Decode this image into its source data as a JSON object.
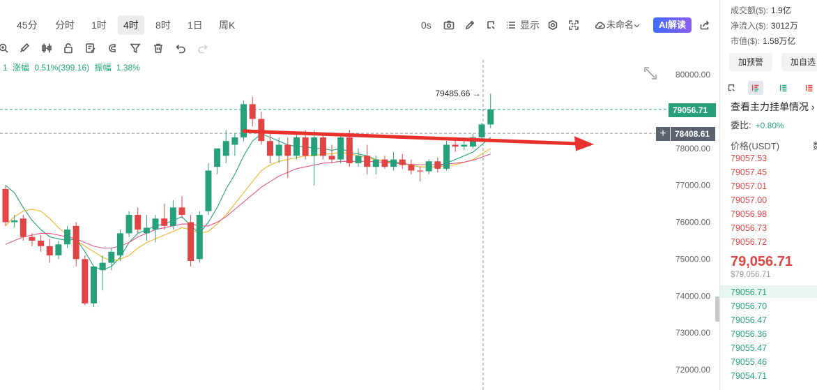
{
  "toolbar": {
    "timeframes": [
      "45分",
      "分时",
      "1时",
      "4时",
      "8时",
      "1日",
      "周K"
    ],
    "active_timeframe": "4时",
    "countdown": "0s",
    "display_label": "显示",
    "layout_name": "未命名",
    "ai_label": "AI解读"
  },
  "info": {
    "prefix": "1",
    "change_label": "涨幅",
    "change_value": "0.51%(399.16)",
    "amplitude_label": "振幅",
    "amplitude_value": "1.38%"
  },
  "chart_data": {
    "type": "candlestick",
    "y_ticks": [
      "80000.00",
      "79000.00",
      "78000.00",
      "77000.00",
      "76000.00",
      "75000.00",
      "74000.00",
      "73000.00",
      "72000.00"
    ],
    "ylim": [
      71850,
      80500
    ],
    "last_price_label": "79056.71",
    "crosshair_price_label": "78408.61",
    "high_annotation": "79485.66",
    "candles": [
      {
        "o": 76900,
        "h": 77000,
        "l": 75900,
        "c": 76000
      },
      {
        "o": 76000,
        "h": 76200,
        "l": 75850,
        "c": 76050
      },
      {
        "o": 76100,
        "h": 76200,
        "l": 75500,
        "c": 75600
      },
      {
        "o": 75600,
        "h": 75700,
        "l": 75350,
        "c": 75500
      },
      {
        "o": 75500,
        "h": 75650,
        "l": 75200,
        "c": 75350
      },
      {
        "o": 75350,
        "h": 75550,
        "l": 74900,
        "c": 75100
      },
      {
        "o": 75100,
        "h": 75500,
        "l": 75000,
        "c": 75400
      },
      {
        "o": 75400,
        "h": 75900,
        "l": 75300,
        "c": 75800
      },
      {
        "o": 75900,
        "h": 76000,
        "l": 74800,
        "c": 75000
      },
      {
        "o": 75000,
        "h": 75100,
        "l": 73750,
        "c": 73800
      },
      {
        "o": 73800,
        "h": 74800,
        "l": 73700,
        "c": 74800
      },
      {
        "o": 74700,
        "h": 75100,
        "l": 74150,
        "c": 74900
      },
      {
        "o": 74900,
        "h": 75300,
        "l": 74700,
        "c": 75200
      },
      {
        "o": 75100,
        "h": 75800,
        "l": 74950,
        "c": 75700
      },
      {
        "o": 75700,
        "h": 76300,
        "l": 75600,
        "c": 76200
      },
      {
        "o": 76200,
        "h": 76400,
        "l": 75700,
        "c": 75800
      },
      {
        "o": 75700,
        "h": 76200,
        "l": 75500,
        "c": 75850
      },
      {
        "o": 75800,
        "h": 76200,
        "l": 75450,
        "c": 76100
      },
      {
        "o": 76100,
        "h": 76500,
        "l": 75800,
        "c": 75900
      },
      {
        "o": 75900,
        "h": 76600,
        "l": 75800,
        "c": 76400
      },
      {
        "o": 76400,
        "h": 76700,
        "l": 76100,
        "c": 76200
      },
      {
        "o": 76000,
        "h": 76200,
        "l": 74800,
        "c": 74950
      },
      {
        "o": 75000,
        "h": 76300,
        "l": 74900,
        "c": 76200
      },
      {
        "o": 76300,
        "h": 77600,
        "l": 76200,
        "c": 77400
      },
      {
        "o": 77500,
        "h": 78000,
        "l": 77300,
        "c": 78000
      },
      {
        "o": 77800,
        "h": 78500,
        "l": 77600,
        "c": 78200
      },
      {
        "o": 78100,
        "h": 78400,
        "l": 77800,
        "c": 78300
      },
      {
        "o": 78300,
        "h": 79300,
        "l": 78200,
        "c": 79200
      },
      {
        "o": 79200,
        "h": 79400,
        "l": 78600,
        "c": 78800
      },
      {
        "o": 78800,
        "h": 79000,
        "l": 78100,
        "c": 78200
      },
      {
        "o": 78200,
        "h": 78400,
        "l": 77600,
        "c": 77800
      },
      {
        "o": 77800,
        "h": 78300,
        "l": 77600,
        "c": 78100
      },
      {
        "o": 78100,
        "h": 78300,
        "l": 77200,
        "c": 77800
      },
      {
        "o": 77800,
        "h": 78400,
        "l": 77700,
        "c": 78300
      },
      {
        "o": 78300,
        "h": 78500,
        "l": 77700,
        "c": 77800
      },
      {
        "o": 77800,
        "h": 78500,
        "l": 77000,
        "c": 78300
      },
      {
        "o": 78300,
        "h": 78400,
        "l": 77700,
        "c": 77800
      },
      {
        "o": 77800,
        "h": 78100,
        "l": 77600,
        "c": 77700
      },
      {
        "o": 77700,
        "h": 78400,
        "l": 77600,
        "c": 78300
      },
      {
        "o": 78300,
        "h": 78500,
        "l": 77500,
        "c": 77600
      },
      {
        "o": 77600,
        "h": 78000,
        "l": 77500,
        "c": 77800
      },
      {
        "o": 77800,
        "h": 78100,
        "l": 77300,
        "c": 77500
      },
      {
        "o": 77500,
        "h": 77800,
        "l": 77300,
        "c": 77700
      },
      {
        "o": 77700,
        "h": 77800,
        "l": 77450,
        "c": 77500
      },
      {
        "o": 77500,
        "h": 77900,
        "l": 77400,
        "c": 77700
      },
      {
        "o": 77700,
        "h": 77850,
        "l": 77450,
        "c": 77550
      },
      {
        "o": 77550,
        "h": 77700,
        "l": 77300,
        "c": 77400
      },
      {
        "o": 77400,
        "h": 77500,
        "l": 77100,
        "c": 77380
      },
      {
        "o": 77380,
        "h": 77700,
        "l": 77300,
        "c": 77650
      },
      {
        "o": 77650,
        "h": 77750,
        "l": 77350,
        "c": 77450
      },
      {
        "o": 77450,
        "h": 78200,
        "l": 77400,
        "c": 78100
      },
      {
        "o": 78100,
        "h": 78300,
        "l": 77900,
        "c": 78050
      },
      {
        "o": 78050,
        "h": 78300,
        "l": 77950,
        "c": 78100
      },
      {
        "o": 78050,
        "h": 78400,
        "l": 78000,
        "c": 78300
      },
      {
        "o": 78300,
        "h": 78700,
        "l": 78200,
        "c": 78650
      },
      {
        "o": 78650,
        "h": 79485.66,
        "l": 78550,
        "c": 79056.71
      }
    ],
    "ma_series": [
      {
        "color": "#26a17b",
        "values": [
          77000,
          76800,
          76400,
          76050,
          75800,
          75600,
          75550,
          75500,
          75550,
          75200,
          74800,
          74700,
          74800,
          75050,
          75450,
          75700,
          75800,
          75900,
          75950,
          76050,
          76150,
          75900,
          75700,
          76000,
          76400,
          76900,
          77300,
          77800,
          78200,
          78400,
          78300,
          78200,
          78100,
          78050,
          78050,
          78000,
          78000,
          77950,
          78000,
          77900,
          77850,
          77800,
          77700,
          77650,
          77650,
          77600,
          77550,
          77500,
          77500,
          77500,
          77600,
          77700,
          77800,
          77900,
          78100,
          78300
        ]
      },
      {
        "color": "#f0b429",
        "values": [
          75900,
          76150,
          76300,
          76350,
          76300,
          76100,
          75850,
          75650,
          75500,
          75350,
          75200,
          75050,
          74950,
          75000,
          75100,
          75300,
          75450,
          75550,
          75650,
          75750,
          75850,
          75800,
          75700,
          75750,
          75950,
          76200,
          76500,
          76800,
          77100,
          77400,
          77550,
          77650,
          77700,
          77750,
          77800,
          77800,
          77850,
          77850,
          77900,
          77850,
          77800,
          77750,
          77700,
          77650,
          77600,
          77580,
          77550,
          77500,
          77500,
          77500,
          77520,
          77560,
          77620,
          77700,
          77850,
          78000
        ]
      },
      {
        "color": "#e0578a",
        "values": [
          75400,
          75500,
          75600,
          75650,
          75700,
          75700,
          75650,
          75600,
          75550,
          75450,
          75350,
          75300,
          75300,
          75350,
          75450,
          75600,
          75700,
          75800,
          75850,
          75900,
          75950,
          75950,
          75900,
          75900,
          76000,
          76150,
          76350,
          76550,
          76750,
          76950,
          77100,
          77250,
          77350,
          77450,
          77500,
          77550,
          77600,
          77620,
          77650,
          77650,
          77650,
          77650,
          77640,
          77620,
          77600,
          77580,
          77570,
          77560,
          77560,
          77560,
          77580,
          77600,
          77630,
          77680,
          77760,
          77850
        ]
      }
    ]
  },
  "panel": {
    "volume_label": "成交额($):",
    "volume_value": "1.9亿",
    "netflow_label": "净流入($):",
    "netflow_value": "3012万",
    "mcap_label": "市值($):",
    "mcap_value": "1.58万亿",
    "alert_button": "加预警",
    "watch_button": "加自选",
    "depth_link": "查看主力挂单情况",
    "ratio_label": "委比:",
    "ratio_value": "+0.80%",
    "price_header": "价格(USDT)",
    "qty_header": "数",
    "asks": [
      "79057.53",
      "79057.45",
      "79057.01",
      "79057.00",
      "79056.98",
      "79056.73",
      "79056.72"
    ],
    "mid_price": "79,056.71",
    "mid_usd": "$79,056.71",
    "bids": [
      "79056.71",
      "79056.70",
      "79056.47",
      "79056.36",
      "79055.47",
      "79055.46",
      "79054.71"
    ]
  }
}
